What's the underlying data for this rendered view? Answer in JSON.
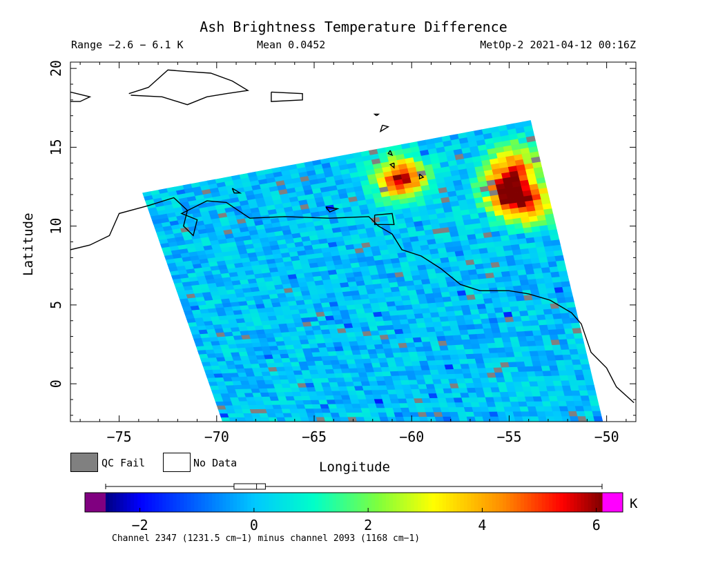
{
  "header": {
    "title": "Ash Brightness Temperature Difference",
    "range": "Range −2.6 − 6.1 K",
    "mean": "Mean 0.0452",
    "satellite": "MetOp-2 2021-04-12 00:16Z"
  },
  "legend": {
    "qc_fail": "QC Fail",
    "no_data": "No Data"
  },
  "colorbar": {
    "unit": "K",
    "ticks": [
      "−2",
      "0",
      "2",
      "4",
      "6"
    ],
    "tick_values": [
      -2,
      0,
      2,
      4,
      6
    ],
    "min": -2.6,
    "max": 6.1,
    "footnote": "Channel 2347 (1231.5 cm−1) minus channel 2093 (1168 cm−1)"
  },
  "colors": {
    "qc_fail": "#808080",
    "below_range": "#800080",
    "above_range": "#ff00ff"
  },
  "chart_data": {
    "type": "heatmap",
    "title": "Ash Brightness Temperature Difference",
    "xlabel": "Longitude",
    "ylabel": "Latitude",
    "xlim": [
      -77.5,
      -48.5
    ],
    "ylim": [
      -2.4,
      20.4
    ],
    "x_ticks": [
      -75,
      -70,
      -65,
      -60,
      -55,
      -50
    ],
    "y_ticks": [
      0,
      5,
      10,
      15,
      20
    ],
    "x_tick_labels": [
      "−75",
      "−70",
      "−65",
      "−60",
      "−55",
      "−50"
    ],
    "y_tick_labels": [
      "0",
      "5",
      "10",
      "15",
      "20"
    ],
    "value_range": [
      -2.6,
      6.1
    ],
    "mean": 0.0452,
    "units": "K",
    "swath_corners": [
      [
        -73.8,
        12.1
      ],
      [
        -53.9,
        16.7
      ],
      [
        -50.2,
        -2.4
      ],
      [
        -69.7,
        -2.4
      ]
    ],
    "hotspots": [
      {
        "lon": -60.5,
        "lat": 13.0,
        "value": 5.2
      },
      {
        "lon": -55.0,
        "lat": 12.1,
        "value": 5.0
      },
      {
        "lon": -54.8,
        "lat": 14.0,
        "value": 3.2
      },
      {
        "lon": -53.8,
        "lat": 11.3,
        "value": 3.0
      }
    ]
  }
}
